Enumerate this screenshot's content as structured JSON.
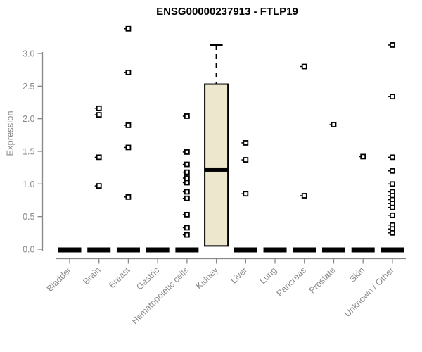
{
  "chart_data": {
    "type": "boxplot",
    "title": "ENSG00000237913 - FTLP19",
    "ylabel": "Expression",
    "xlabel": "",
    "ylim": [
      0,
      3.4
    ],
    "yticks": [
      0,
      0.5,
      1,
      1.5,
      2,
      2.5,
      3
    ],
    "ytick_labels": [
      "0.0",
      "0.5",
      "1.0",
      "1.5",
      "2.0",
      "2.5",
      "3.0"
    ],
    "grid": false,
    "legend": "none",
    "categories": [
      "Bladder",
      "Brain",
      "Breast",
      "Gastric",
      "Hematopoietic cells",
      "Kidney",
      "Liver",
      "Lung",
      "Pancreas",
      "Prostate",
      "Skin",
      "Unknown / Other"
    ],
    "series": [
      {
        "category": "Bladder",
        "q1": 0,
        "median": 0,
        "q3": 0,
        "whisker_low": 0,
        "whisker_high": 0,
        "outliers": []
      },
      {
        "category": "Brain",
        "q1": 0,
        "median": 0,
        "q3": 0,
        "whisker_low": 0,
        "whisker_high": 0,
        "outliers": [
          2.16,
          2.06,
          1.41,
          0.97
        ]
      },
      {
        "category": "Breast",
        "q1": 0,
        "median": 0,
        "q3": 0,
        "whisker_low": 0,
        "whisker_high": 0,
        "outliers": [
          3.38,
          2.71,
          1.9,
          1.56,
          0.8
        ]
      },
      {
        "category": "Gastric",
        "q1": 0,
        "median": 0,
        "q3": 0,
        "whisker_low": 0,
        "whisker_high": 0,
        "outliers": []
      },
      {
        "category": "Hematopoietic cells",
        "q1": 0,
        "median": 0,
        "q3": 0,
        "whisker_low": 0,
        "whisker_high": 0,
        "outliers": [
          2.04,
          1.49,
          1.3,
          1.18,
          1.09,
          1.02,
          0.88,
          0.78,
          0.53,
          0.33,
          0.22
        ]
      },
      {
        "category": "Kidney",
        "q1": 0.05,
        "median": 1.22,
        "q3": 2.53,
        "whisker_low": 0.05,
        "whisker_high": 3.13,
        "outliers": []
      },
      {
        "category": "Liver",
        "q1": 0,
        "median": 0,
        "q3": 0,
        "whisker_low": 0,
        "whisker_high": 0,
        "outliers": [
          1.63,
          1.37,
          0.85
        ]
      },
      {
        "category": "Lung",
        "q1": 0,
        "median": 0,
        "q3": 0,
        "whisker_low": 0,
        "whisker_high": 0,
        "outliers": []
      },
      {
        "category": "Pancreas",
        "q1": 0,
        "median": 0,
        "q3": 0,
        "whisker_low": 0,
        "whisker_high": 0,
        "outliers": [
          2.8,
          0.82
        ]
      },
      {
        "category": "Prostate",
        "q1": 0,
        "median": 0,
        "q3": 0,
        "whisker_low": 0,
        "whisker_high": 0,
        "outliers": [
          1.91
        ]
      },
      {
        "category": "Skin",
        "q1": 0,
        "median": 0,
        "q3": 0,
        "whisker_low": 0,
        "whisker_high": 0,
        "outliers": [
          1.42
        ]
      },
      {
        "category": "Unknown / Other",
        "q1": 0,
        "median": 0,
        "q3": 0,
        "whisker_low": 0,
        "whisker_high": 0,
        "outliers": [
          3.13,
          2.34,
          1.41,
          1.2,
          1.0,
          0.88,
          0.82,
          0.76,
          0.7,
          0.64,
          0.52,
          0.37,
          0.31,
          0.25
        ]
      }
    ],
    "colors": {
      "background": "#ffffff",
      "box_fill": "#EDE7CE",
      "box_stroke": "#000000",
      "median": "#000000",
      "whisker": "#000000",
      "outlier_stroke": "#000000",
      "outlier_fill": "#ffffff",
      "axis": "#888888",
      "tick_text": "#8a8a8a",
      "title": "#000000"
    }
  }
}
